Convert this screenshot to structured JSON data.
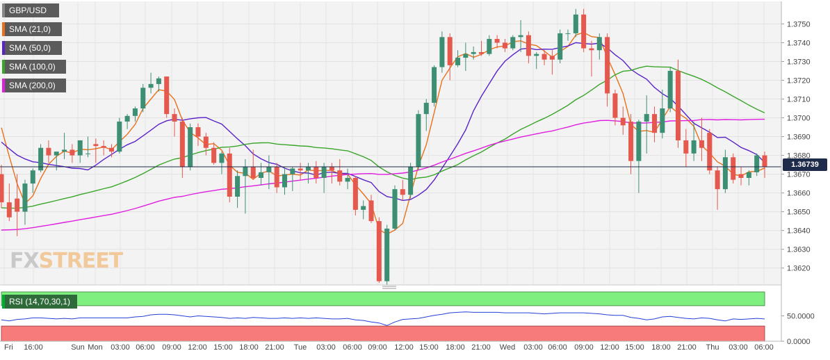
{
  "chart_data": {
    "type": "candlestick",
    "symbol": "GBP/USD",
    "indicators": [
      {
        "name": "SMA (21,0)",
        "color": "#e8711c"
      },
      {
        "name": "SMA (50,0)",
        "color": "#5a23c8"
      },
      {
        "name": "SMA (100,0)",
        "color": "#3aa52a"
      },
      {
        "name": "SMA (200,0)",
        "color": "#e01ee0"
      }
    ],
    "up_color": "#3d8f73",
    "down_color": "#e5584d",
    "current_price": 1.36739,
    "current_price_label": "1.36739",
    "y_range": [
      1.3611,
      1.3762
    ],
    "y_ticks": [
      "1.3750",
      "1.3740",
      "1.3730",
      "1.3720",
      "1.3710",
      "1.3700",
      "1.3690",
      "1.3680",
      "1.3670",
      "1.3660",
      "1.3650",
      "1.3640",
      "1.3630",
      "1.3620"
    ],
    "x_ticks": [
      "Fri",
      "16:00",
      "Sun",
      "Mon",
      "03:00",
      "06:00",
      "09:00",
      "12:00",
      "15:00",
      "18:00",
      "21:00",
      "Tue",
      "03:00",
      "06:00",
      "09:00",
      "12:00",
      "15:00",
      "18:00",
      "21:00",
      "Wed",
      "03:00",
      "06:00",
      "09:00",
      "12:00",
      "15:00",
      "18:00",
      "21:00",
      "Thu",
      "03:00",
      "06:00"
    ],
    "candles": [
      [
        1.367,
        1.3675,
        1.3652,
        1.3655
      ],
      [
        1.3655,
        1.3665,
        1.3645,
        1.3647
      ],
      [
        1.3657,
        1.367,
        1.3637,
        1.365
      ],
      [
        1.365,
        1.3667,
        1.3643,
        1.3665
      ],
      [
        1.3665,
        1.3673,
        1.366,
        1.3672
      ],
      [
        1.3672,
        1.3686,
        1.3671,
        1.3684
      ],
      [
        1.3684,
        1.3688,
        1.3676,
        1.368
      ],
      [
        1.368,
        1.3682,
        1.3672,
        1.3682
      ],
      [
        1.3682,
        1.3692,
        1.3678,
        1.3683
      ],
      [
        1.3683,
        1.3686,
        1.3676,
        1.368
      ],
      [
        1.368,
        1.3688,
        1.3676,
        1.3688
      ],
      [
        1.3681,
        1.369,
        1.3679,
        1.3681
      ],
      [
        1.3686,
        1.3689,
        1.3676,
        1.3685
      ],
      [
        1.3685,
        1.3688,
        1.368,
        1.3684
      ],
      [
        1.3684,
        1.3686,
        1.3679,
        1.3682
      ],
      [
        1.3682,
        1.37,
        1.3681,
        1.3698
      ],
      [
        1.3698,
        1.3702,
        1.3694,
        1.3701
      ],
      [
        1.3701,
        1.3706,
        1.3698,
        1.3705
      ],
      [
        1.3705,
        1.3718,
        1.3703,
        1.3716
      ],
      [
        1.3716,
        1.3724,
        1.3713,
        1.3718
      ],
      [
        1.3718,
        1.3722,
        1.3714,
        1.3721
      ],
      [
        1.3722,
        1.3721,
        1.37,
        1.3702
      ],
      [
        1.3702,
        1.3705,
        1.369,
        1.3698
      ],
      [
        1.3698,
        1.37,
        1.3668,
        1.3674
      ],
      [
        1.3674,
        1.3697,
        1.3672,
        1.3695
      ],
      [
        1.3695,
        1.3697,
        1.3685,
        1.369
      ],
      [
        1.369,
        1.3692,
        1.368,
        1.3684
      ],
      [
        1.3684,
        1.3687,
        1.3675,
        1.3676
      ],
      [
        1.3676,
        1.3682,
        1.367,
        1.3681
      ],
      [
        1.3681,
        1.3684,
        1.3655,
        1.3658
      ],
      [
        1.3658,
        1.3672,
        1.3652,
        1.3669
      ],
      [
        1.3669,
        1.3678,
        1.3649,
        1.3674
      ],
      [
        1.3674,
        1.3683,
        1.3667,
        1.3668
      ],
      [
        1.3668,
        1.3676,
        1.3664,
        1.3671
      ],
      [
        1.3671,
        1.368,
        1.3662,
        1.3674
      ],
      [
        1.3674,
        1.3676,
        1.366,
        1.3663
      ],
      [
        1.3663,
        1.3674,
        1.3659,
        1.367
      ],
      [
        1.367,
        1.3674,
        1.3661,
        1.3673
      ],
      [
        1.3673,
        1.3676,
        1.3667,
        1.3672
      ],
      [
        1.3672,
        1.3676,
        1.3665,
        1.3674
      ],
      [
        1.3674,
        1.3677,
        1.3665,
        1.3668
      ],
      [
        1.3668,
        1.3676,
        1.366,
        1.3674
      ],
      [
        1.3674,
        1.3676,
        1.3665,
        1.3672
      ],
      [
        1.3672,
        1.3678,
        1.3664,
        1.3666
      ],
      [
        1.3666,
        1.3673,
        1.3662,
        1.3668
      ],
      [
        1.3668,
        1.3669,
        1.3648,
        1.3651
      ],
      [
        1.3651,
        1.3656,
        1.3646,
        1.3653
      ],
      [
        1.3656,
        1.3659,
        1.3644,
        1.3645
      ],
      [
        1.3645,
        1.3647,
        1.3612,
        1.3613
      ],
      [
        1.3613,
        1.3643,
        1.3611,
        1.3641
      ],
      [
        1.3641,
        1.3664,
        1.364,
        1.3662
      ],
      [
        1.3662,
        1.3667,
        1.3656,
        1.3659
      ],
      [
        1.3659,
        1.3676,
        1.3657,
        1.3674
      ],
      [
        1.3674,
        1.3704,
        1.3672,
        1.3702
      ],
      [
        1.3702,
        1.371,
        1.3693,
        1.3708
      ],
      [
        1.3708,
        1.3728,
        1.3706,
        1.3727
      ],
      [
        1.3727,
        1.3746,
        1.3724,
        1.3743
      ],
      [
        1.3743,
        1.3745,
        1.372,
        1.3728
      ],
      [
        1.3728,
        1.3736,
        1.3727,
        1.3732
      ],
      [
        1.3732,
        1.374,
        1.3725,
        1.3734
      ],
      [
        1.3734,
        1.3738,
        1.3731,
        1.3735
      ],
      [
        1.3735,
        1.3741,
        1.3733,
        1.3734
      ],
      [
        1.3734,
        1.3744,
        1.3733,
        1.3742
      ],
      [
        1.3742,
        1.3744,
        1.3737,
        1.374
      ],
      [
        1.374,
        1.3742,
        1.3735,
        1.3737
      ],
      [
        1.3737,
        1.3744,
        1.3736,
        1.3743
      ],
      [
        1.3743,
        1.3752,
        1.3735,
        1.3744
      ],
      [
        1.3744,
        1.3746,
        1.3729,
        1.3733
      ],
      [
        1.3733,
        1.3735,
        1.3726,
        1.3734
      ],
      [
        1.3734,
        1.3736,
        1.3728,
        1.3731
      ],
      [
        1.3733,
        1.3736,
        1.3723,
        1.3731
      ],
      [
        1.3731,
        1.3747,
        1.3729,
        1.3745
      ],
      [
        1.3745,
        1.3747,
        1.3741,
        1.3745
      ],
      [
        1.3745,
        1.3758,
        1.3743,
        1.3755
      ],
      [
        1.3755,
        1.3758,
        1.3735,
        1.3737
      ],
      [
        1.3737,
        1.3741,
        1.3722,
        1.3736
      ],
      [
        1.3736,
        1.3745,
        1.3731,
        1.3743
      ],
      [
        1.3743,
        1.3745,
        1.3706,
        1.3713
      ],
      [
        1.3713,
        1.3715,
        1.3696,
        1.37
      ],
      [
        1.37,
        1.3706,
        1.3691,
        1.3696
      ],
      [
        1.3698,
        1.3702,
        1.367,
        1.3677
      ],
      [
        1.3677,
        1.3699,
        1.366,
        1.3698
      ],
      [
        1.3698,
        1.3712,
        1.3681,
        1.3702
      ],
      [
        1.3702,
        1.3706,
        1.3687,
        1.3692
      ],
      [
        1.3692,
        1.3715,
        1.3689,
        1.3705
      ],
      [
        1.3705,
        1.3727,
        1.3703,
        1.3725
      ],
      [
        1.3725,
        1.3731,
        1.3684,
        1.3688
      ],
      [
        1.3688,
        1.3694,
        1.3674,
        1.3681
      ],
      [
        1.3681,
        1.3698,
        1.3677,
        1.3688
      ],
      [
        1.3688,
        1.37,
        1.3677,
        1.3684
      ],
      [
        1.3692,
        1.3694,
        1.367,
        1.3672
      ],
      [
        1.3672,
        1.3674,
        1.3651,
        1.3662
      ],
      [
        1.3662,
        1.3683,
        1.366,
        1.3679
      ],
      [
        1.3679,
        1.3681,
        1.3665,
        1.3667
      ],
      [
        1.367,
        1.3674,
        1.3664,
        1.3668
      ],
      [
        1.3668,
        1.3672,
        1.3664,
        1.3671
      ],
      [
        1.3671,
        1.3681,
        1.3669,
        1.368
      ],
      [
        1.368,
        1.3682,
        1.3668,
        1.3674
      ]
    ],
    "rsi": {
      "label": "RSI (14,70,30,1)",
      "y_ticks": [
        "50.0000",
        "0.0000"
      ],
      "overbought": 70,
      "oversold": 30,
      "overbought_color": "#7ff07f",
      "oversold_color": "#f77b7b",
      "line_color": "#2340d8",
      "values": [
        42,
        40,
        43,
        44,
        46,
        46,
        45,
        44,
        45,
        44,
        46,
        46,
        46,
        46,
        46,
        46,
        46,
        48,
        49,
        52,
        53,
        53,
        52,
        50,
        48,
        50,
        49,
        48,
        47,
        45,
        46,
        45,
        47,
        46,
        45,
        45,
        46,
        45,
        46,
        45,
        46,
        45,
        44,
        44,
        45,
        42,
        41,
        38,
        36,
        31,
        38,
        43,
        44,
        45,
        48,
        51,
        53,
        56,
        57,
        58,
        57,
        57,
        57,
        57,
        56,
        56,
        56,
        56,
        55,
        54,
        55,
        56,
        56,
        56,
        56,
        55,
        54,
        52,
        51,
        51,
        47,
        45,
        42,
        44,
        48,
        49,
        47,
        45,
        44,
        46,
        45,
        42,
        40,
        44,
        43,
        44,
        45,
        44
      ]
    }
  }
}
